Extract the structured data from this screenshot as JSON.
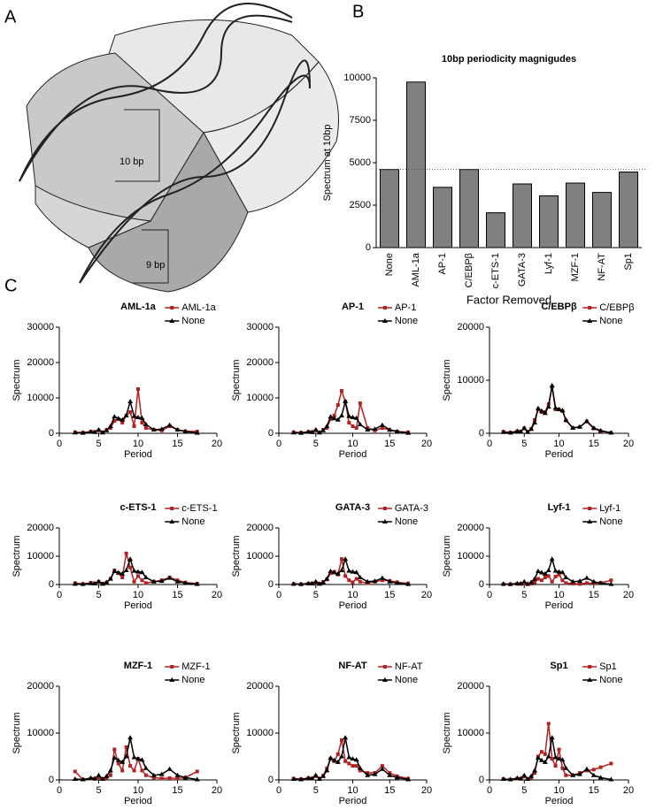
{
  "panels": {
    "labels": [
      "A",
      "B",
      "C"
    ]
  },
  "diagram": {
    "labels": [
      "10 bp",
      "9 bp"
    ]
  },
  "chart_data": [
    {
      "type": "bar",
      "title": "10bp periodicity magnigudes",
      "y_label": "Spectrum at 10bp",
      "x_label": "Factor Removed",
      "categories": [
        "None",
        "AML-1a",
        "AP-1",
        "C/EBPβ",
        "c-ETS-1",
        "GATA-3",
        "Lyf-1",
        "MZF-1",
        "NF-AT",
        "Sp1"
      ],
      "values": [
        4600,
        9750,
        3550,
        4600,
        2050,
        3750,
        3050,
        3800,
        3250,
        4450
      ],
      "color": "#808080",
      "reference_line": 4600,
      "ylim": [
        0,
        10000
      ],
      "yticks": [
        0,
        2500,
        5000,
        7500,
        10000
      ]
    },
    {
      "type": "line",
      "title": "AML-1a",
      "x_label": "Period",
      "y_label": "Spectrum",
      "xlim": [
        0,
        20
      ],
      "xticks": [
        0,
        5,
        10,
        15,
        20
      ],
      "ylim": [
        0,
        30000
      ],
      "yticks": [
        0,
        10000,
        20000,
        30000
      ],
      "x": [
        2,
        3,
        4,
        4.5,
        5,
        5.5,
        6,
        6.5,
        7,
        7.5,
        8,
        8.5,
        9,
        9.5,
        10,
        10.5,
        11,
        12,
        13,
        14,
        15,
        16,
        17.5
      ],
      "series": [
        {
          "name": "AML-1a",
          "color": "#b22222",
          "values": [
            300,
            200,
            500,
            400,
            800,
            300,
            1000,
            1500,
            3500,
            4000,
            3000,
            5000,
            6000,
            2000,
            12500,
            3000,
            1500,
            1000,
            800,
            2000,
            1000,
            600,
            500
          ]
        },
        {
          "name": "None",
          "color": "#000000",
          "values": [
            200,
            100,
            400,
            300,
            1000,
            200,
            800,
            2000,
            4700,
            4200,
            3800,
            5000,
            9000,
            4800,
            4500,
            4300,
            2500,
            1000,
            1200,
            2300,
            1000,
            500,
            100
          ]
        }
      ]
    },
    {
      "type": "line",
      "title": "AP-1",
      "x_label": "Period",
      "y_label": "Spectrum",
      "xlim": [
        0,
        20
      ],
      "xticks": [
        0,
        5,
        10,
        15,
        20
      ],
      "ylim": [
        0,
        30000
      ],
      "yticks": [
        0,
        10000,
        20000,
        30000
      ],
      "x": [
        2,
        3,
        4,
        4.5,
        5,
        5.5,
        6,
        6.5,
        7,
        7.5,
        8,
        8.5,
        9,
        9.5,
        10,
        10.5,
        11,
        12,
        13,
        14,
        15,
        16,
        17.5
      ],
      "series": [
        {
          "name": "AP-1",
          "color": "#b22222",
          "values": [
            300,
            200,
            400,
            300,
            800,
            200,
            1000,
            1500,
            4000,
            5000,
            8000,
            12000,
            9000,
            3000,
            2000,
            1500,
            8500,
            1500,
            800,
            1500,
            900,
            500,
            300
          ]
        },
        {
          "name": "None",
          "color": "#000000",
          "values": [
            200,
            100,
            400,
            300,
            1000,
            200,
            800,
            2000,
            4700,
            4200,
            3800,
            5000,
            9000,
            4800,
            4500,
            4300,
            2500,
            1000,
            1200,
            2300,
            1000,
            500,
            100
          ]
        }
      ]
    },
    {
      "type": "line",
      "title": "C/EBPβ",
      "x_label": "Period",
      "y_label": "Spectrum",
      "xlim": [
        0,
        20
      ],
      "xticks": [
        0,
        5,
        10,
        15,
        20
      ],
      "ylim": [
        0,
        20000
      ],
      "yticks": [
        0,
        10000,
        20000
      ],
      "x": [
        2,
        3,
        4,
        4.5,
        5,
        5.5,
        6,
        6.5,
        7,
        7.5,
        8,
        8.5,
        9,
        9.5,
        10,
        10.5,
        11,
        12,
        13,
        14,
        15,
        16,
        17.5
      ],
      "series": [
        {
          "name": "C/EBPβ",
          "color": "#b22222",
          "values": [
            300,
            150,
            400,
            300,
            900,
            300,
            800,
            2500,
            4500,
            4000,
            4000,
            5500,
            8700,
            4500,
            4500,
            4200,
            2400,
            1000,
            1200,
            2200,
            900,
            400,
            100
          ]
        },
        {
          "name": "None",
          "color": "#000000",
          "values": [
            200,
            100,
            400,
            300,
            1000,
            200,
            800,
            2000,
            4700,
            4200,
            3800,
            5000,
            9000,
            4800,
            4500,
            4300,
            2500,
            1000,
            1200,
            2300,
            1000,
            500,
            100
          ]
        }
      ]
    },
    {
      "type": "line",
      "title": "c-ETS-1",
      "x_label": "Period",
      "y_label": "Spectrum",
      "xlim": [
        0,
        20
      ],
      "xticks": [
        0,
        5,
        10,
        15,
        20
      ],
      "ylim": [
        0,
        20000
      ],
      "yticks": [
        0,
        10000,
        20000
      ],
      "x": [
        2,
        3,
        4,
        4.5,
        5,
        5.5,
        6,
        6.5,
        7,
        7.5,
        8,
        8.5,
        9,
        9.5,
        10,
        10.5,
        11,
        12,
        13,
        14,
        15,
        16,
        17.5
      ],
      "series": [
        {
          "name": "c-ETS-1",
          "color": "#b22222",
          "values": [
            500,
            200,
            600,
            400,
            1000,
            300,
            700,
            2000,
            5000,
            4000,
            2500,
            11000,
            6000,
            1000,
            3000,
            1500,
            500,
            1000,
            1500,
            2500,
            1500,
            700,
            300
          ]
        },
        {
          "name": "None",
          "color": "#000000",
          "values": [
            200,
            100,
            400,
            300,
            1000,
            200,
            800,
            2000,
            4700,
            4200,
            3800,
            5000,
            9000,
            4800,
            4500,
            4300,
            2500,
            1000,
            1200,
            2300,
            1000,
            500,
            100
          ]
        }
      ]
    },
    {
      "type": "line",
      "title": "GATA-3",
      "x_label": "Period",
      "y_label": "Spectrum",
      "xlim": [
        0,
        20
      ],
      "xticks": [
        0,
        5,
        10,
        15,
        20
      ],
      "ylim": [
        0,
        20000
      ],
      "yticks": [
        0,
        10000,
        20000
      ],
      "x": [
        2,
        3,
        4,
        4.5,
        5,
        5.5,
        6,
        6.5,
        7,
        7.5,
        8,
        8.5,
        9,
        9.5,
        10,
        10.5,
        11,
        12,
        13,
        14,
        15,
        16,
        17.5
      ],
      "series": [
        {
          "name": "GATA-3",
          "color": "#b22222",
          "values": [
            200,
            100,
            300,
            400,
            700,
            300,
            900,
            1800,
            4000,
            4500,
            3500,
            9000,
            3000,
            1500,
            800,
            2000,
            1000,
            500,
            1000,
            1500,
            1300,
            800,
            400
          ]
        },
        {
          "name": "None",
          "color": "#000000",
          "values": [
            200,
            100,
            400,
            300,
            1000,
            200,
            800,
            2000,
            4700,
            4200,
            3800,
            5000,
            9000,
            4800,
            4500,
            4300,
            2500,
            1000,
            1200,
            2300,
            1000,
            500,
            100
          ]
        }
      ]
    },
    {
      "type": "line",
      "title": "Lyf-1",
      "x_label": "Period",
      "y_label": "Spectrum",
      "xlim": [
        0,
        20
      ],
      "xticks": [
        0,
        5,
        10,
        15,
        20
      ],
      "ylim": [
        0,
        20000
      ],
      "yticks": [
        0,
        10000,
        20000
      ],
      "x": [
        2,
        3,
        4,
        4.5,
        5,
        5.5,
        6,
        6.5,
        7,
        7.5,
        8,
        8.5,
        9,
        9.5,
        10,
        10.5,
        11,
        12,
        13,
        14,
        15,
        16,
        17.5
      ],
      "series": [
        {
          "name": "Lyf-1",
          "color": "#b22222",
          "values": [
            100,
            100,
            200,
            200,
            400,
            100,
            300,
            800,
            2000,
            1500,
            2500,
            3000,
            1000,
            2800,
            3500,
            1500,
            500,
            300,
            200,
            500,
            400,
            600,
            1500
          ]
        },
        {
          "name": "None",
          "color": "#000000",
          "values": [
            200,
            100,
            400,
            300,
            1000,
            200,
            800,
            2000,
            4700,
            4200,
            3800,
            5000,
            9000,
            4800,
            4500,
            4300,
            2500,
            1000,
            1200,
            2300,
            1000,
            500,
            100
          ]
        }
      ]
    },
    {
      "type": "line",
      "title": "MZF-1",
      "x_label": "Period",
      "y_label": "Spectrum",
      "xlim": [
        0,
        20
      ],
      "xticks": [
        0,
        5,
        10,
        15,
        20
      ],
      "ylim": [
        0,
        20000
      ],
      "yticks": [
        0,
        10000,
        20000
      ],
      "x": [
        2,
        3,
        4,
        4.5,
        5,
        5.5,
        6,
        6.5,
        7,
        7.5,
        8,
        8.5,
        9,
        9.5,
        10,
        10.5,
        11,
        12,
        13,
        14,
        15,
        16,
        17.5
      ],
      "series": [
        {
          "name": "MZF-1",
          "color": "#b22222",
          "values": [
            1800,
            100,
            300,
            200,
            500,
            200,
            400,
            1000,
            6500,
            3500,
            2000,
            7000,
            3000,
            2000,
            4500,
            2000,
            1000,
            500,
            300,
            400,
            300,
            500,
            1800
          ]
        },
        {
          "name": "None",
          "color": "#000000",
          "values": [
            200,
            100,
            400,
            300,
            1000,
            200,
            800,
            2000,
            4700,
            4200,
            3800,
            5000,
            9000,
            4800,
            4500,
            4300,
            2500,
            1000,
            1200,
            2300,
            1000,
            500,
            100
          ]
        }
      ]
    },
    {
      "type": "line",
      "title": "NF-AT",
      "x_label": "Period",
      "y_label": "Spectrum",
      "xlim": [
        0,
        20
      ],
      "xticks": [
        0,
        5,
        10,
        15,
        20
      ],
      "ylim": [
        0,
        20000
      ],
      "yticks": [
        0,
        10000,
        20000
      ],
      "x": [
        2,
        3,
        4,
        4.5,
        5,
        5.5,
        6,
        6.5,
        7,
        7.5,
        8,
        8.5,
        9,
        9.5,
        10,
        10.5,
        11,
        12,
        13,
        14,
        15,
        16,
        17.5
      ],
      "series": [
        {
          "name": "NF-AT",
          "color": "#b22222",
          "values": [
            300,
            200,
            400,
            300,
            800,
            300,
            900,
            2500,
            4500,
            4000,
            5500,
            8500,
            4000,
            3500,
            3000,
            3000,
            2000,
            1500,
            1500,
            3000,
            1500,
            800,
            300
          ]
        },
        {
          "name": "None",
          "color": "#000000",
          "values": [
            200,
            100,
            400,
            300,
            1000,
            200,
            800,
            2000,
            4700,
            4200,
            3800,
            5000,
            9000,
            4800,
            4500,
            4300,
            2500,
            1000,
            1200,
            2300,
            1000,
            500,
            100
          ]
        }
      ]
    },
    {
      "type": "line",
      "title": "Sp1",
      "x_label": "Period",
      "y_label": "Spectrum",
      "xlim": [
        0,
        20
      ],
      "xticks": [
        0,
        5,
        10,
        15,
        20
      ],
      "ylim": [
        0,
        20000
      ],
      "yticks": [
        0,
        10000,
        20000
      ],
      "x": [
        2,
        3,
        4,
        4.5,
        5,
        5.5,
        6,
        6.5,
        7,
        7.5,
        8,
        8.5,
        9,
        9.5,
        10,
        10.5,
        11,
        12,
        13,
        14,
        15,
        16,
        17.5
      ],
      "series": [
        {
          "name": "Sp1",
          "color": "#b22222",
          "values": [
            200,
            100,
            300,
            200,
            700,
            200,
            500,
            1500,
            5000,
            6000,
            5500,
            12000,
            4500,
            3000,
            6500,
            2500,
            1000,
            1000,
            1500,
            2000,
            2200,
            2700,
            3500
          ]
        },
        {
          "name": "None",
          "color": "#000000",
          "values": [
            200,
            100,
            400,
            300,
            1000,
            200,
            800,
            2000,
            4700,
            4200,
            3800,
            5000,
            9000,
            4800,
            4500,
            4300,
            2500,
            1000,
            1200,
            2300,
            1000,
            500,
            100
          ]
        }
      ]
    }
  ]
}
